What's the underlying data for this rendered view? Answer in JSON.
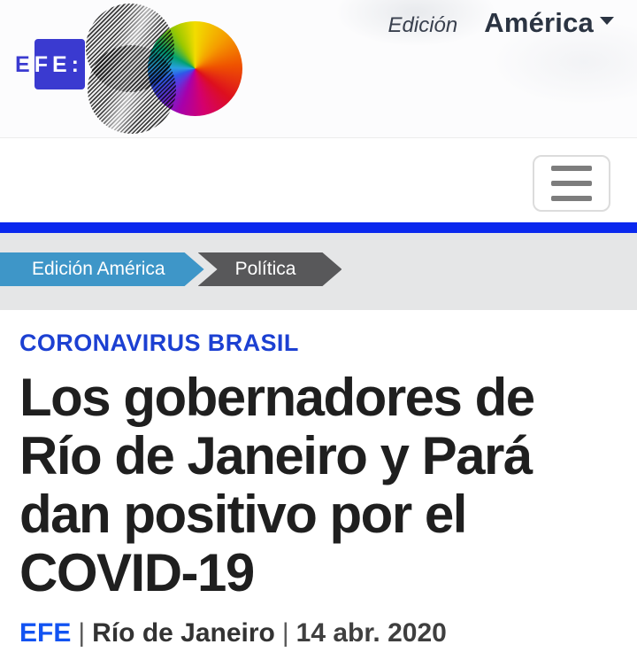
{
  "brand": {
    "name_prefix": "E",
    "name_rest": "FE:"
  },
  "edition": {
    "label": "Edición",
    "value": "América"
  },
  "breadcrumbs": {
    "items": [
      {
        "label": "Edición América"
      },
      {
        "label": "Política"
      }
    ]
  },
  "article": {
    "category": "CORONAVIRUS BRASIL",
    "headline_lines": [
      "Los gobernadores de",
      "Río de Janeiro y Pará",
      "dan positivo por el",
      "COVID-19"
    ],
    "byline": {
      "agency": "EFE",
      "sep1": "|",
      "location": "Río de Janeiro",
      "sep2": "|",
      "date": "14 abr. 2020"
    }
  },
  "colors": {
    "accent_bar_blue": "#0a28ee",
    "logo_blue": "#3a3ad0",
    "category_blue": "#1c40d2",
    "byline_blue": "#1253f2",
    "breadcrumb_blue": "#3e96c8",
    "breadcrumb_gray": "#58585a",
    "strip_gray": "#e5e6e7",
    "headline_text": "#1f1f1f"
  }
}
